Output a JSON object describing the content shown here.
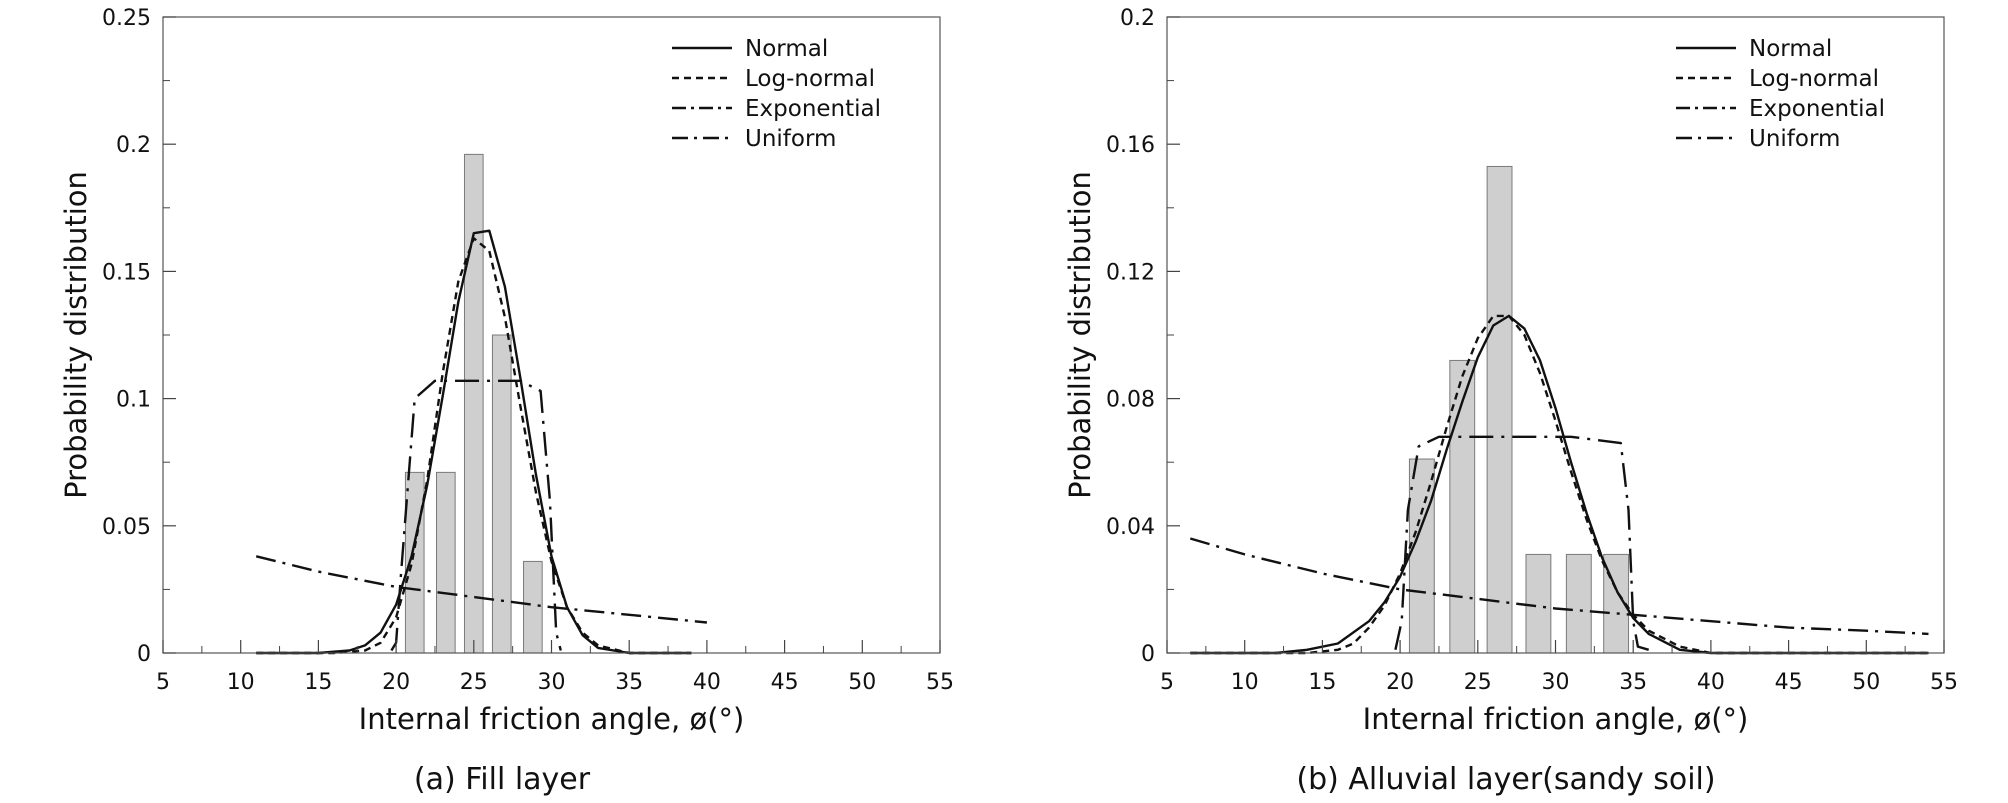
{
  "chart_data": [
    {
      "type": "bar",
      "caption": "(a) Fill layer",
      "xlabel": "Internal friction angle, ø(°)",
      "ylabel": "Probability distribution",
      "xlim": [
        5,
        55
      ],
      "ylim": [
        0,
        0.25
      ],
      "x_ticks": [
        5,
        10,
        15,
        20,
        25,
        30,
        35,
        40,
        45,
        50,
        55
      ],
      "x_tick_labels": [
        "5",
        "10",
        "15",
        "20",
        "25",
        "30",
        "35",
        "40",
        "45",
        "50",
        "55"
      ],
      "y_ticks": [
        0,
        0.05,
        0.1,
        0.15,
        0.2,
        0.25
      ],
      "y_tick_labels": [
        "0",
        "0.05",
        "0.1",
        "0.15",
        "0.2",
        "0.25"
      ],
      "legend_position": "top-right",
      "grid": false,
      "bar_color": "#cfcfcf",
      "bar_width": 1.2,
      "bars": {
        "x": [
          21.2,
          23.2,
          25.0,
          26.8,
          28.8
        ],
        "values": [
          0.071,
          0.071,
          0.196,
          0.125,
          0.036
        ]
      },
      "series": [
        {
          "name": "Normal",
          "style": "solid",
          "x": [
            11,
            15,
            17,
            18,
            19,
            20,
            21,
            22,
            23,
            24,
            25,
            26,
            27,
            28,
            29,
            30,
            31,
            32,
            33,
            35,
            39
          ],
          "y": [
            0,
            0,
            0.001,
            0.003,
            0.008,
            0.019,
            0.038,
            0.066,
            0.101,
            0.138,
            0.165,
            0.166,
            0.144,
            0.108,
            0.07,
            0.038,
            0.018,
            0.007,
            0.002,
            0,
            0
          ]
        },
        {
          "name": "Log-normal",
          "style": "dash",
          "x": [
            11,
            16,
            18,
            19,
            20,
            21,
            22,
            23,
            24,
            25,
            26,
            27,
            28,
            29,
            30,
            31,
            32,
            33,
            35,
            39
          ],
          "y": [
            0,
            0,
            0.001,
            0.004,
            0.014,
            0.035,
            0.068,
            0.11,
            0.146,
            0.163,
            0.158,
            0.132,
            0.097,
            0.063,
            0.036,
            0.018,
            0.008,
            0.003,
            0,
            0
          ]
        },
        {
          "name": "Exponential",
          "style": "dashdot",
          "x": [
            11,
            15,
            20,
            25,
            30,
            35,
            40
          ],
          "y": [
            0.038,
            0.032,
            0.026,
            0.022,
            0.018,
            0.015,
            0.012
          ]
        },
        {
          "name": "Uniform",
          "style": "longdash",
          "x": [
            19.7,
            20.0,
            20.3,
            21.2,
            22.5,
            25,
            28,
            29.3,
            29.9,
            30.3,
            30.6
          ],
          "y": [
            0.001,
            0.004,
            0.03,
            0.1,
            0.107,
            0.107,
            0.107,
            0.103,
            0.06,
            0.008,
            0.001
          ]
        }
      ]
    },
    {
      "type": "bar",
      "caption": "(b) Alluvial layer(sandy soil)",
      "xlabel": "Internal friction angle, ø(°)",
      "ylabel": "Probability distribution",
      "xlim": [
        5,
        55
      ],
      "ylim": [
        0,
        0.2
      ],
      "x_ticks": [
        5,
        10,
        15,
        20,
        25,
        30,
        35,
        40,
        45,
        50,
        55
      ],
      "x_tick_labels": [
        "5",
        "10",
        "15",
        "20",
        "25",
        "30",
        "35",
        "40",
        "45",
        "50",
        "55"
      ],
      "y_ticks": [
        0,
        0.04,
        0.08,
        0.12,
        0.16,
        0.2
      ],
      "y_tick_labels": [
        "0",
        "0.04",
        "0.08",
        "0.12",
        "0.16",
        "0.2"
      ],
      "legend_position": "top-right",
      "grid": false,
      "bar_color": "#cfcfcf",
      "bar_width": 1.6,
      "bars": {
        "x": [
          21.4,
          24.0,
          26.4,
          28.9,
          31.5,
          33.9
        ],
        "values": [
          0.061,
          0.092,
          0.153,
          0.031,
          0.031,
          0.031
        ]
      },
      "series": [
        {
          "name": "Normal",
          "style": "solid",
          "x": [
            6.5,
            12,
            14,
            16,
            18,
            19,
            20,
            21,
            22,
            23,
            24,
            25,
            26,
            27,
            28,
            29,
            30,
            31,
            32,
            33,
            34,
            35,
            36,
            38,
            40,
            54
          ],
          "y": [
            0,
            0,
            0.001,
            0.003,
            0.01,
            0.016,
            0.024,
            0.035,
            0.048,
            0.064,
            0.079,
            0.093,
            0.103,
            0.106,
            0.102,
            0.092,
            0.077,
            0.06,
            0.044,
            0.03,
            0.019,
            0.011,
            0.006,
            0.001,
            0,
            0
          ]
        },
        {
          "name": "Log-normal",
          "style": "dash",
          "x": [
            6.5,
            14,
            16,
            17,
            18,
            19,
            20,
            21,
            22,
            23,
            24,
            25,
            26,
            27,
            28,
            29,
            30,
            31,
            32,
            33,
            34,
            35,
            36,
            38,
            40,
            54
          ],
          "y": [
            0,
            0,
            0.001,
            0.003,
            0.008,
            0.015,
            0.025,
            0.038,
            0.054,
            0.071,
            0.087,
            0.099,
            0.106,
            0.106,
            0.1,
            0.088,
            0.073,
            0.057,
            0.042,
            0.029,
            0.019,
            0.012,
            0.007,
            0.002,
            0,
            0
          ]
        },
        {
          "name": "Exponential",
          "style": "dashdot",
          "x": [
            6.5,
            10,
            15,
            20,
            25,
            30,
            35,
            40,
            45,
            50,
            54
          ],
          "y": [
            0.036,
            0.031,
            0.025,
            0.02,
            0.017,
            0.014,
            0.012,
            0.01,
            0.008,
            0.007,
            0.006
          ]
        },
        {
          "name": "Uniform",
          "style": "longdash",
          "x": [
            19.7,
            20.1,
            20.5,
            21.2,
            22.5,
            26,
            31,
            34.2,
            34.7,
            35.0,
            35.3,
            36
          ],
          "y": [
            0.001,
            0.01,
            0.045,
            0.065,
            0.068,
            0.068,
            0.068,
            0.066,
            0.045,
            0.01,
            0.002,
            0.001
          ]
        }
      ]
    }
  ]
}
